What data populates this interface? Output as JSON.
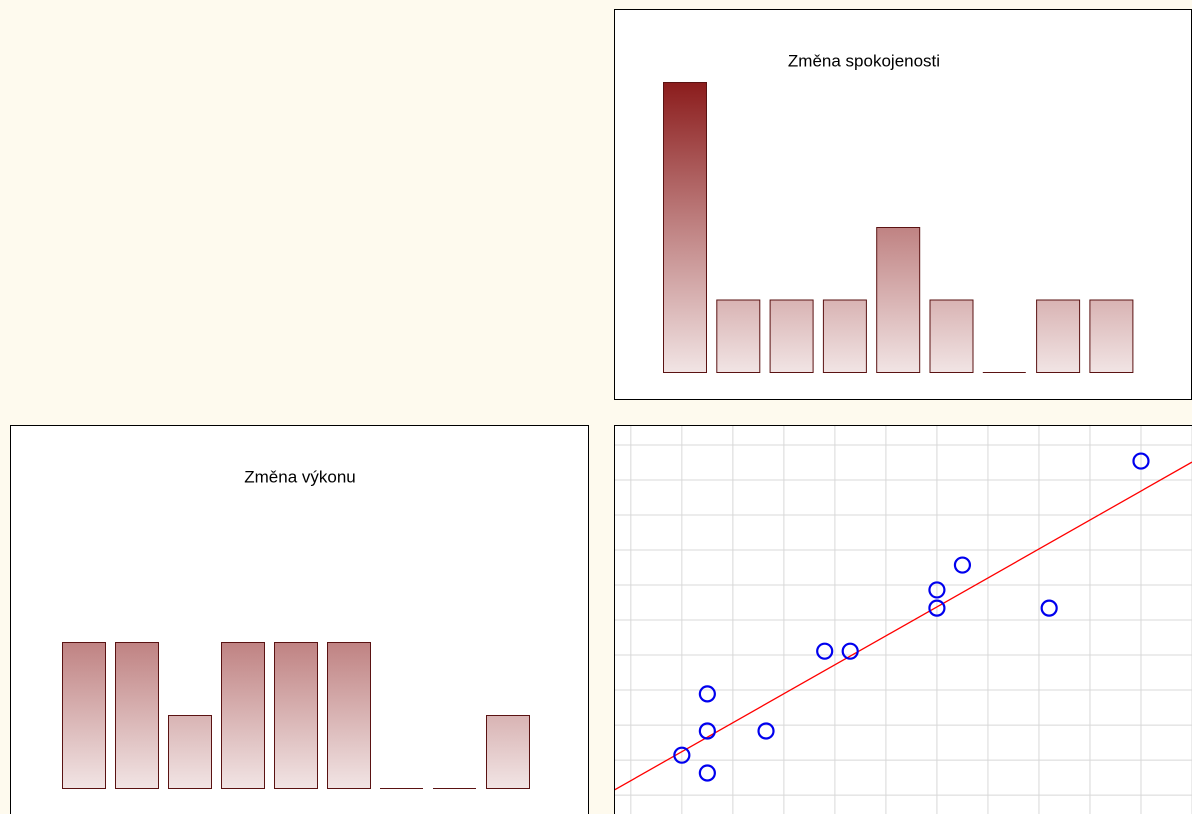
{
  "chart_data": [
    {
      "type": "bar",
      "title": "Změna spokojenosti",
      "categories": [
        null,
        null,
        null,
        null,
        null,
        null,
        null,
        null,
        null
      ],
      "values": [
        4,
        1,
        1,
        1,
        2,
        1,
        0,
        1,
        1
      ],
      "color": "#8b1c1c",
      "ylim": [
        0,
        4
      ]
    },
    {
      "type": "bar",
      "title": "Změna výkonu",
      "categories": [
        null,
        null,
        null,
        null,
        null,
        null,
        null,
        null,
        null
      ],
      "values": [
        2,
        2,
        1,
        2,
        2,
        2,
        0,
        0,
        1
      ],
      "color": "#8b1c1c",
      "ylim": [
        0,
        4
      ]
    },
    {
      "type": "scatter",
      "x": [
        0,
        0.5,
        0.5,
        0.5,
        1.65,
        2.8,
        3.3,
        5,
        5,
        5.5,
        7.2,
        9
      ],
      "values": [
        1.14,
        0.63,
        1.83,
        2.89,
        1.83,
        4.11,
        4.11,
        5.34,
        5.86,
        6.57,
        5.34,
        9.54
      ],
      "color": "#0000ee",
      "xlim": [
        -1.33,
        10
      ],
      "ylim": [
        -0.54,
        10.57
      ],
      "xticks": [
        -1,
        0,
        1,
        2,
        3,
        4,
        5,
        6,
        7,
        8,
        9,
        10
      ],
      "yticks": [
        0,
        1,
        2,
        3,
        4,
        5,
        6,
        7,
        8,
        9,
        10
      ],
      "grid": true,
      "trendline": {
        "slope": 0.827,
        "intercept": 1.24,
        "color": "#ff0000"
      }
    }
  ]
}
